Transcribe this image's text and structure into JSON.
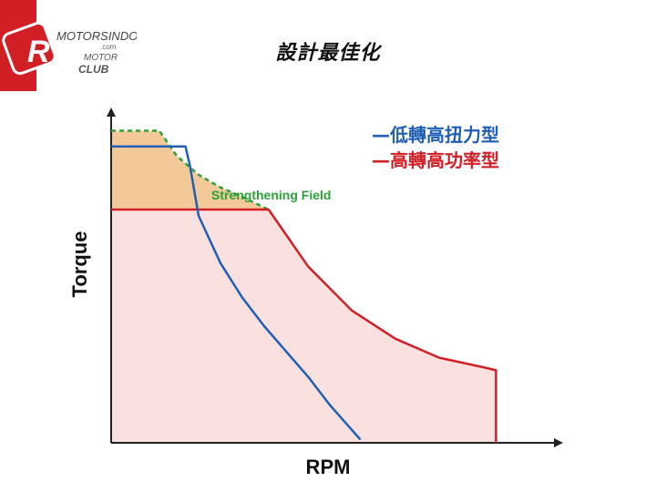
{
  "logo": {
    "badge": "R",
    "text": [
      "MOTORSINDO",
      ".com",
      "MOTOR",
      "CLUB"
    ]
  },
  "title": "設計最佳化",
  "chart_data": {
    "type": "line",
    "title": "設計最佳化",
    "xlabel": "RPM",
    "ylabel": "Torque",
    "xlim": [
      0,
      100
    ],
    "ylim": [
      0,
      100
    ],
    "grid": false,
    "legend_position": "top-right",
    "series": [
      {
        "name": "低轉高扭力型",
        "color": "#1f5fb4",
        "x": [
          0,
          17,
          18,
          20,
          25,
          30,
          35,
          40,
          45,
          50,
          57
        ],
        "y": [
          94,
          94,
          88,
          72,
          57,
          46,
          37,
          29,
          21,
          12,
          1
        ]
      },
      {
        "name": "高轉高功率型",
        "color": "#d21f26",
        "x": [
          0,
          36,
          45,
          55,
          65,
          75,
          85,
          88,
          88
        ],
        "y": [
          74,
          74,
          56,
          42,
          33,
          27,
          24,
          23,
          0
        ]
      }
    ],
    "annotations": [
      {
        "label": "Strengthening Field",
        "color": "#2aa23a",
        "x": [
          0,
          11,
          15,
          20,
          25,
          30,
          36
        ],
        "y": [
          99,
          99,
          91,
          85,
          81,
          78,
          74
        ]
      }
    ]
  }
}
